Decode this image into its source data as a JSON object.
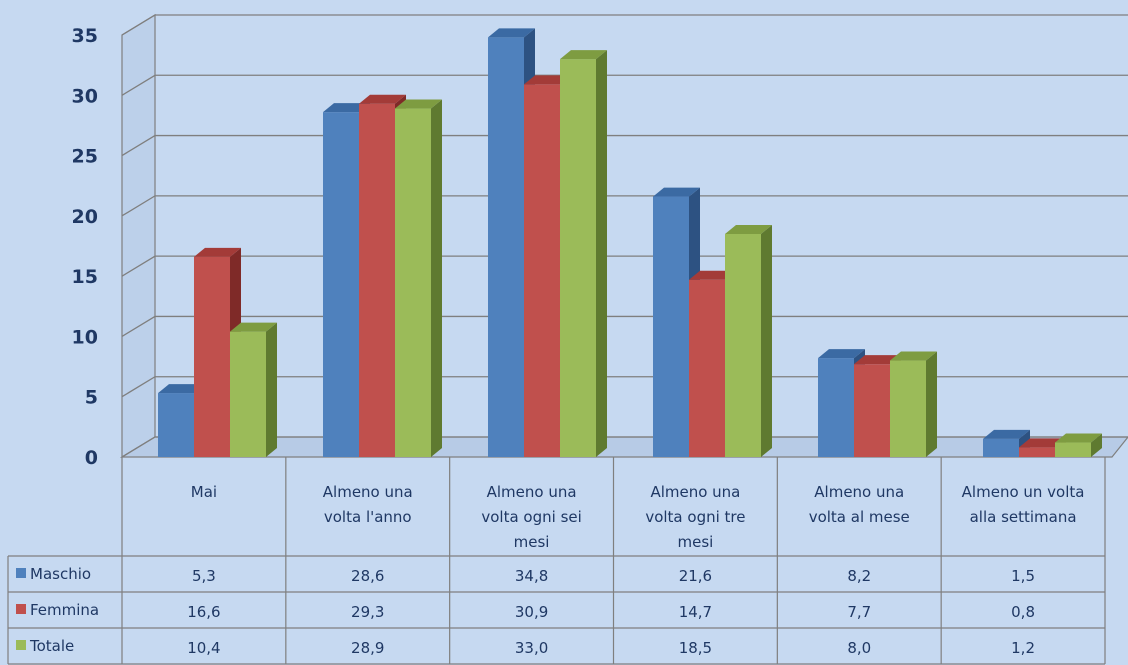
{
  "chart_data": {
    "type": "bar",
    "chart_style": "3d-clustered-column-with-data-table",
    "categories": [
      [
        "Mai"
      ],
      [
        "Almeno una",
        "volta l'anno"
      ],
      [
        "Almeno una",
        "volta ogni sei",
        "mesi"
      ],
      [
        "Almeno una",
        "volta ogni tre",
        "mesi"
      ],
      [
        "Almeno una",
        "volta al mese"
      ],
      [
        "Almeno un volta",
        "alla settimana"
      ]
    ],
    "series": [
      {
        "name": "Maschio",
        "color": "#4f81bd",
        "side_color": "#2d5282",
        "top_color": "#3b6aa3",
        "values": [
          5.3,
          28.6,
          34.8,
          21.6,
          8.2,
          1.5
        ],
        "labels": [
          "5,3",
          "28,6",
          "34,8",
          "21,6",
          "8,2",
          "1,5"
        ]
      },
      {
        "name": "Femmina",
        "color": "#c0504d",
        "side_color": "#7f2a28",
        "top_color": "#a33b38",
        "values": [
          16.6,
          29.3,
          30.9,
          14.7,
          7.7,
          0.8
        ],
        "labels": [
          "16,6",
          "29,3",
          "30,9",
          "14,7",
          "7,7",
          "0,8"
        ]
      },
      {
        "name": "Totale",
        "color": "#9bbb59",
        "side_color": "#5f7a30",
        "top_color": "#7e9c41",
        "values": [
          10.4,
          28.9,
          33.0,
          18.5,
          8.0,
          1.2
        ],
        "labels": [
          "10,4",
          "28,9",
          "33,0",
          "18,5",
          "8,0",
          "1,2"
        ]
      }
    ],
    "ylim": [
      0,
      35
    ],
    "yticks": [
      "0",
      "5",
      "10",
      "15",
      "20",
      "25",
      "30",
      "35"
    ],
    "grid": true,
    "legend": "data-table-left"
  }
}
